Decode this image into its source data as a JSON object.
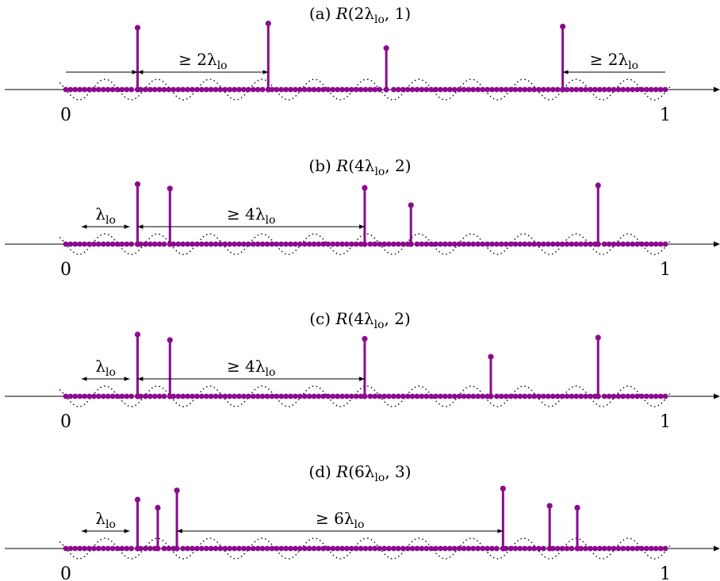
{
  "colors": {
    "signal": "#8B0A8E",
    "axis": "#000000",
    "wave": "#000000"
  },
  "tick_labels": {
    "zero": "0",
    "one": "1"
  },
  "panels": [
    {
      "title": {
        "prefix": "(a) ",
        "script": "R",
        "args": "(2λ",
        "sub": "lo",
        "tail": ", 1)"
      },
      "spikes": [
        {
          "x": 0.1197,
          "h": 1.0
        },
        {
          "x": 0.3377,
          "h": 1.07
        },
        {
          "x": 0.5346,
          "h": 0.67
        },
        {
          "x": 0.8289,
          "h": 1.02
        }
      ],
      "annotations": [
        {
          "kind": "arrow-right",
          "from": 0.0,
          "to": 0.1197
        },
        {
          "kind": "double",
          "from": 0.1197,
          "to": 0.3377,
          "label": {
            "prefix": "≥ 2λ",
            "sub": "lo"
          }
        },
        {
          "kind": "arrow-left",
          "from": 0.8289,
          "to": 1.0,
          "label": {
            "prefix": "≥ 2λ",
            "sub": "lo"
          }
        }
      ]
    },
    {
      "title": {
        "prefix": "(b) ",
        "script": "R",
        "args": "(4λ",
        "sub": "lo",
        "tail": ", 2)"
      },
      "spikes": [
        {
          "x": 0.1197,
          "h": 0.97
        },
        {
          "x": 0.1737,
          "h": 0.9
        },
        {
          "x": 0.4986,
          "h": 0.91
        },
        {
          "x": 0.5757,
          "h": 0.63
        },
        {
          "x": 0.8879,
          "h": 0.95
        }
      ],
      "annotations": [
        {
          "kind": "double",
          "from": 0.0262,
          "to": 0.1065,
          "label": {
            "prefix": "λ",
            "sub": "lo"
          }
        },
        {
          "kind": "double",
          "from": 0.1197,
          "to": 0.4986,
          "label": {
            "prefix": "≥ 4λ",
            "sub": "lo"
          }
        }
      ]
    },
    {
      "title": {
        "prefix": "(c) ",
        "script": "R",
        "args": "(4λ",
        "sub": "lo",
        "tail": ", 2)"
      },
      "spikes": [
        {
          "x": 0.1197,
          "h": 1.0
        },
        {
          "x": 0.1737,
          "h": 0.91
        },
        {
          "x": 0.4986,
          "h": 0.93
        },
        {
          "x": 0.709,
          "h": 0.64
        },
        {
          "x": 0.8879,
          "h": 0.95
        }
      ],
      "annotations": [
        {
          "kind": "double",
          "from": 0.0262,
          "to": 0.1065,
          "label": {
            "prefix": "λ",
            "sub": "lo"
          }
        },
        {
          "kind": "double",
          "from": 0.1197,
          "to": 0.4986,
          "label": {
            "prefix": "≥ 4λ",
            "sub": "lo"
          }
        }
      ]
    },
    {
      "title": {
        "prefix": "(d) ",
        "script": "R",
        "args": "(6λ",
        "sub": "lo",
        "tail": ", 3)"
      },
      "spikes": [
        {
          "x": 0.1197,
          "h": 0.79
        },
        {
          "x": 0.1534,
          "h": 0.66
        },
        {
          "x": 0.1853,
          "h": 0.94
        },
        {
          "x": 0.7293,
          "h": 0.97
        },
        {
          "x": 0.8071,
          "h": 0.69
        },
        {
          "x": 0.8532,
          "h": 0.66
        }
      ],
      "annotations": [
        {
          "kind": "double",
          "from": 0.0262,
          "to": 0.1065,
          "label": {
            "prefix": "λ",
            "sub": "lo"
          }
        },
        {
          "kind": "double",
          "from": 0.1853,
          "to": 0.7293,
          "label": {
            "prefix": "≥ 6λ",
            "sub": "lo"
          }
        }
      ]
    }
  ]
}
